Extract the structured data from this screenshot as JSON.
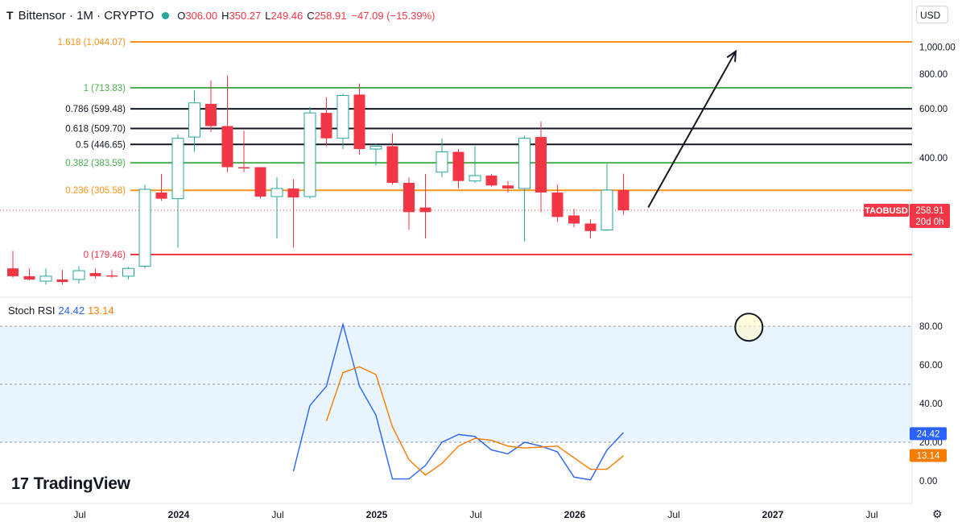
{
  "header": {
    "logo": "T",
    "symbol": "Bittensor · 1M · CRYPTO",
    "o_label": "O",
    "o": "306.00",
    "h_label": "H",
    "h": "350.27",
    "l_label": "L",
    "l": "249.46",
    "c_label": "C",
    "c": "258.91",
    "change": "−47.09 (−15.39%)",
    "status_color": "#26a69a"
  },
  "currency": "USD",
  "branding": {
    "mark": "17",
    "name": "TradingView"
  },
  "settings_icon": "gear-icon",
  "chart_data": [
    {
      "type": "candlestick",
      "symbol": "TAOBUSD",
      "timeframe": "1M",
      "yscale": "log",
      "price_label": {
        "value": "258.91",
        "countdown": "20d 0h",
        "color": "#f23645"
      },
      "yticks": [
        {
          "value": 400,
          "label": "400.00"
        },
        {
          "value": 600,
          "label": "600.00"
        },
        {
          "value": 800,
          "label": "800.00"
        },
        {
          "value": 1000,
          "label": "1,000.00"
        }
      ],
      "xticks": [
        "Jul",
        "2024",
        "Jul",
        "2025",
        "Jul",
        "2026",
        "Jul",
        "2027",
        "Jul"
      ],
      "fib_levels": [
        {
          "label": "1.618 (1,044.07)",
          "value": 1044.07,
          "color": "#f7931a"
        },
        {
          "label": "1 (713.83)",
          "value": 713.83,
          "color": "#4caf50"
        },
        {
          "label": "0.786 (599.48)",
          "value": 599.48,
          "color": "#131722"
        },
        {
          "label": "0.618 (509.70)",
          "value": 509.7,
          "color": "#131722"
        },
        {
          "label": "0.5 (446.65)",
          "value": 446.65,
          "color": "#131722"
        },
        {
          "label": "0.382 (383.59)",
          "value": 383.59,
          "color": "#4caf50"
        },
        {
          "label": "0.236 (305.58)",
          "value": 305.58,
          "color": "#f7931a"
        },
        {
          "label": "0 (179.46)",
          "value": 179.46,
          "color": "#f23645"
        }
      ],
      "candles": [
        {
          "o": 160,
          "h": 185,
          "l": 148,
          "c": 150
        },
        {
          "o": 150,
          "h": 160,
          "l": 145,
          "c": 146
        },
        {
          "o": 144,
          "h": 160,
          "l": 140,
          "c": 150
        },
        {
          "o": 146,
          "h": 158,
          "l": 140,
          "c": 143
        },
        {
          "o": 146,
          "h": 163,
          "l": 141,
          "c": 157
        },
        {
          "o": 154,
          "h": 160,
          "l": 147,
          "c": 150
        },
        {
          "o": 151,
          "h": 158,
          "l": 148,
          "c": 150
        },
        {
          "o": 150,
          "h": 162,
          "l": 146,
          "c": 160
        },
        {
          "o": 163,
          "h": 320,
          "l": 160,
          "c": 308
        },
        {
          "o": 300,
          "h": 350,
          "l": 280,
          "c": 285
        },
        {
          "o": 285,
          "h": 485,
          "l": 190,
          "c": 470
        },
        {
          "o": 475,
          "h": 700,
          "l": 420,
          "c": 630
        },
        {
          "o": 625,
          "h": 760,
          "l": 495,
          "c": 520
        },
        {
          "o": 520,
          "h": 790,
          "l": 355,
          "c": 370
        },
        {
          "o": 370,
          "h": 500,
          "l": 355,
          "c": 368
        },
        {
          "o": 370,
          "h": 370,
          "l": 285,
          "c": 290
        },
        {
          "o": 290,
          "h": 340,
          "l": 205,
          "c": 310
        },
        {
          "o": 310,
          "h": 335,
          "l": 190,
          "c": 288
        },
        {
          "o": 290,
          "h": 610,
          "l": 285,
          "c": 580
        },
        {
          "o": 580,
          "h": 660,
          "l": 440,
          "c": 470
        },
        {
          "o": 470,
          "h": 680,
          "l": 430,
          "c": 670
        },
        {
          "o": 675,
          "h": 740,
          "l": 410,
          "c": 430
        },
        {
          "o": 430,
          "h": 450,
          "l": 375,
          "c": 440
        },
        {
          "o": 440,
          "h": 490,
          "l": 320,
          "c": 325
        },
        {
          "o": 325,
          "h": 340,
          "l": 220,
          "c": 255
        },
        {
          "o": 265,
          "h": 350,
          "l": 205,
          "c": 255
        },
        {
          "o": 355,
          "h": 470,
          "l": 340,
          "c": 420
        },
        {
          "o": 420,
          "h": 430,
          "l": 310,
          "c": 330
        },
        {
          "o": 330,
          "h": 440,
          "l": 325,
          "c": 345
        },
        {
          "o": 345,
          "h": 350,
          "l": 315,
          "c": 318
        },
        {
          "o": 318,
          "h": 330,
          "l": 300,
          "c": 310
        },
        {
          "o": 310,
          "h": 480,
          "l": 200,
          "c": 470
        },
        {
          "o": 475,
          "h": 540,
          "l": 255,
          "c": 300
        },
        {
          "o": 300,
          "h": 320,
          "l": 235,
          "c": 245
        },
        {
          "o": 248,
          "h": 262,
          "l": 225,
          "c": 232
        },
        {
          "o": 232,
          "h": 240,
          "l": 205,
          "c": 218
        },
        {
          "o": 220,
          "h": 380,
          "l": 218,
          "c": 306
        },
        {
          "o": 306,
          "h": 350.27,
          "l": 249.46,
          "c": 258.91
        }
      ],
      "annotations": [
        {
          "type": "arrow",
          "from": {
            "bar": 38.5,
            "price": 265
          },
          "to": {
            "bar": 43.8,
            "price": 965
          }
        },
        {
          "type": "horizontal-line",
          "price": 258.91,
          "style": "dotted"
        }
      ]
    },
    {
      "type": "line",
      "title": "Stoch RSI",
      "legend": [
        {
          "name": "24.42",
          "color": "#2962ff"
        },
        {
          "name": "13.14",
          "color": "#f57c00"
        }
      ],
      "ylim": [
        0,
        100
      ],
      "yticks": [
        {
          "value": 80,
          "label": "80.00"
        },
        {
          "value": 60,
          "label": "60.00"
        },
        {
          "value": 40,
          "label": "40.00"
        },
        {
          "value": 20,
          "label": "20.00"
        },
        {
          "value": 0,
          "label": "0.00"
        }
      ],
      "bands": {
        "upper": 80,
        "lower": 20,
        "mid": 50
      },
      "series": [
        {
          "color": "#2962ff",
          "start_bar": 17,
          "values": [
            5,
            39,
            49,
            81,
            49,
            34,
            1,
            1,
            8,
            20,
            24,
            23,
            16,
            14,
            20,
            18,
            15,
            2,
            0.5,
            16,
            25
          ]
        },
        {
          "color": "#f57c00",
          "start_bar": 19,
          "values": [
            31,
            56,
            59,
            55,
            28,
            11,
            3,
            9,
            18,
            22,
            21,
            18,
            17,
            17.5,
            18,
            12,
            6,
            6,
            13
          ]
        }
      ],
      "last_values": [
        {
          "label": "24.42",
          "value": 24.42,
          "color": "#2962ff"
        },
        {
          "label": "13.14",
          "value": 13.14,
          "color": "#f57c00"
        }
      ],
      "annotations": [
        {
          "type": "circle",
          "bar": 44.6,
          "value": 79.5
        }
      ]
    }
  ]
}
